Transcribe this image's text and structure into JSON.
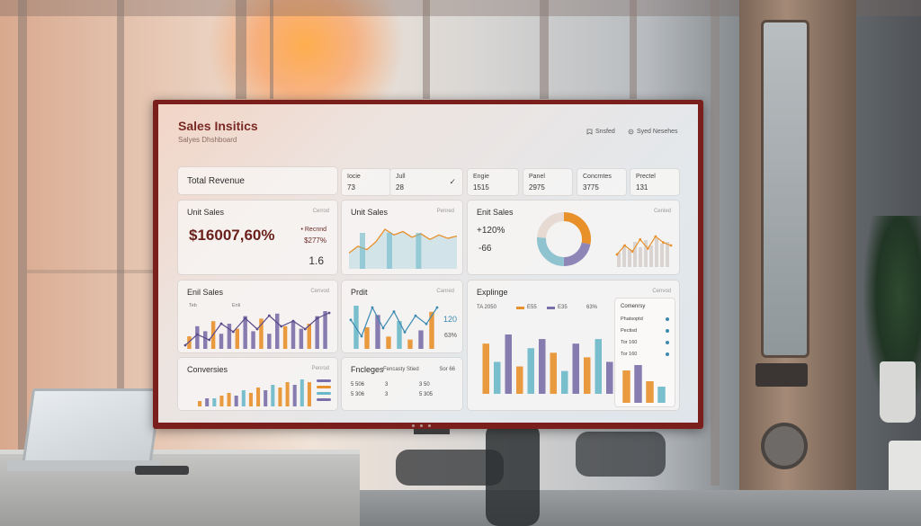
{
  "app": {
    "title": "Sales Insitics",
    "subtitle": "Salyes Dhshboard"
  },
  "header": {
    "btn1": "Snsfed",
    "btn2": "Syed Nesehes"
  },
  "total_revenue": {
    "label": "Total Revenue"
  },
  "metrics": [
    {
      "label": "Iocie",
      "value": "73"
    },
    {
      "label": "Jull",
      "value": "28",
      "check": "✓"
    },
    {
      "label": "Engie",
      "value": "1515"
    },
    {
      "label": "Panel",
      "value": "2975"
    },
    {
      "label": "Concrntes",
      "value": "3775"
    },
    {
      "label": "Prectel",
      "value": "131"
    }
  ],
  "unit_sales_card": {
    "title": "Unit Sales",
    "link": "Cerrod",
    "big_value": "$16007,60%",
    "side_label": "• Recnnd",
    "side_value": "$277%",
    "small_value": "1.6"
  },
  "unit_sales_chart": {
    "title": "Unit Sales",
    "link": "Penred"
  },
  "enit_sales_donut": {
    "title": "Enit Sales",
    "link": "Cenled",
    "stat1": "+120%",
    "stat2": "-66"
  },
  "enil_sales": {
    "title": "Enil Sales",
    "link": "Cenvod",
    "x_labels": [
      "Teb",
      "Enli"
    ]
  },
  "profit": {
    "title": "Prdit",
    "link": "Canred",
    "stat1": "120",
    "stat2": "63%"
  },
  "explinge": {
    "title": "Explinge",
    "link": "Cenvod",
    "legend": [
      "TA 2050",
      "E55",
      "E35",
      "63%"
    ]
  },
  "comerses_list": {
    "title": "Comenrsy",
    "items": [
      "Phatsoptd",
      "Pectisd",
      "Tor 160",
      "Tor 160"
    ]
  },
  "conversies": {
    "title": "Conversies",
    "link": "Penrod"
  },
  "fncleges": {
    "title": "Fncleges",
    "headers": [
      "Fencasty Stied",
      "Sor 66"
    ],
    "rows": [
      [
        "5 506",
        "3",
        "3 50"
      ],
      [
        "5 306",
        "3",
        "5 305"
      ]
    ]
  },
  "colors": {
    "accent": "#7a2a24",
    "orange": "#e8902a",
    "purple": "#7a6fa8",
    "teal": "#6bb8c8",
    "frame": "#7a1f1c"
  },
  "chart_data": [
    {
      "type": "line",
      "name": "unit-sales-sparkline",
      "values": [
        14,
        20,
        17,
        24,
        35,
        30,
        33,
        28,
        31,
        26,
        30,
        27,
        29
      ]
    },
    {
      "type": "pie",
      "name": "enit-sales-donut",
      "values": [
        28,
        22,
        26,
        24
      ],
      "colors": [
        "#e8902a",
        "#8f86b8",
        "#8fc3d0",
        "#e6dad3"
      ]
    },
    {
      "type": "bar",
      "name": "enil-sales-bars",
      "values": [
        5,
        9,
        7,
        11,
        6,
        10,
        8,
        13,
        7,
        12,
        6,
        14,
        9,
        11,
        8,
        10,
        13,
        15
      ],
      "line": [
        4,
        8,
        6,
        12,
        9,
        14,
        10,
        15,
        11,
        13,
        10,
        14,
        16
      ]
    },
    {
      "type": "bar",
      "name": "profit-bars",
      "values": [
        14,
        7,
        11,
        4,
        9,
        3,
        6,
        12
      ],
      "line": [
        10,
        6,
        13,
        8,
        12,
        7,
        11,
        9,
        13
      ]
    },
    {
      "type": "bar",
      "name": "explinge-bars",
      "values": [
        11,
        7,
        13,
        6,
        10,
        12,
        9,
        5,
        11,
        8,
        12,
        7
      ]
    },
    {
      "type": "bar",
      "name": "comerses-bars",
      "values": [
        12,
        14,
        8,
        6
      ]
    },
    {
      "type": "bar",
      "name": "conversies-bars",
      "values": [
        2,
        3,
        3,
        4,
        5,
        4,
        6,
        5,
        7,
        6,
        8,
        7,
        9,
        8,
        10,
        9
      ]
    }
  ]
}
